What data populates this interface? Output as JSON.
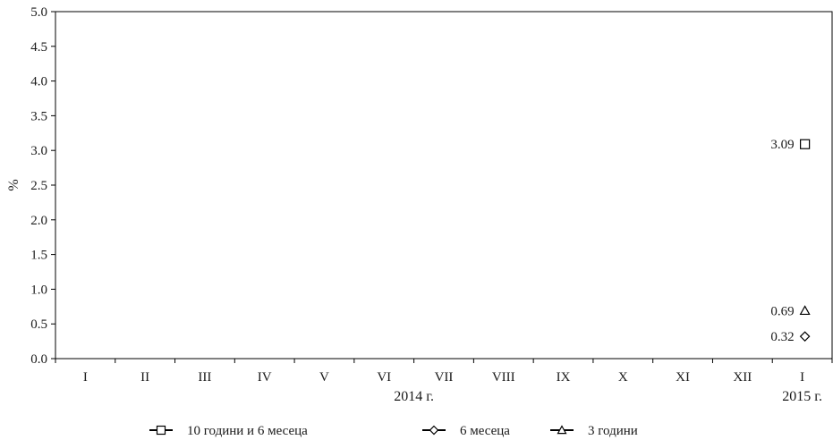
{
  "chart_data": {
    "type": "scatter",
    "ylabel": "%",
    "ylim": [
      0,
      5
    ],
    "yticks": [
      "0.0",
      "0.5",
      "1.0",
      "1.5",
      "2.0",
      "2.5",
      "3.0",
      "3.5",
      "4.0",
      "4.5",
      "5.0"
    ],
    "categories": [
      "I",
      "II",
      "III",
      "IV",
      "V",
      "VI",
      "VII",
      "VIII",
      "IX",
      "X",
      "XI",
      "XII",
      "I"
    ],
    "year_labels": [
      {
        "text": "2014 г.",
        "category_index": 5.5
      },
      {
        "text": "2015 г.",
        "category_index": 12
      }
    ],
    "grid": false,
    "legend_position": "bottom",
    "series": [
      {
        "name": "10 години и 6 месеца",
        "marker": "square",
        "points": [
          {
            "category_index": 12,
            "value": 3.09,
            "label": "3.09"
          }
        ]
      },
      {
        "name": "6 месеца",
        "marker": "diamond",
        "points": [
          {
            "category_index": 12,
            "value": 0.32,
            "label": "0.32"
          }
        ]
      },
      {
        "name": "3 години",
        "marker": "triangle",
        "points": [
          {
            "category_index": 12,
            "value": 0.69,
            "label": "0.69"
          }
        ]
      }
    ]
  }
}
